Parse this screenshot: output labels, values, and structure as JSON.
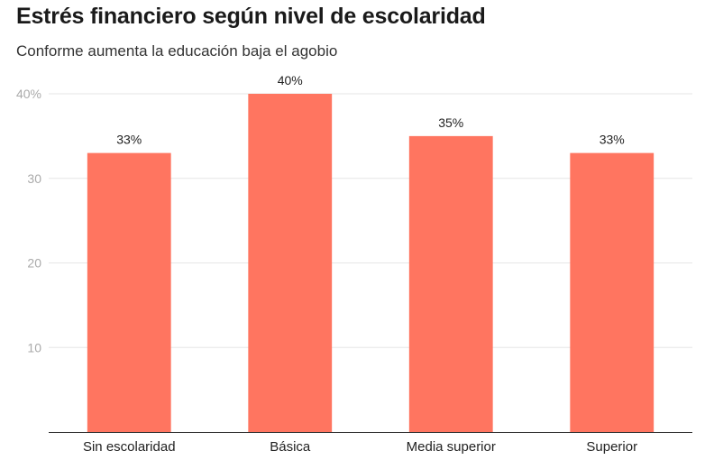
{
  "chart_data": {
    "type": "bar",
    "title": "Estrés financiero según nivel de escolaridad",
    "subtitle": "Conforme aumenta la educación baja el agobio",
    "categories": [
      "Sin escolaridad",
      "Básica",
      "Media superior",
      "Superior"
    ],
    "values": [
      33,
      40,
      35,
      33
    ],
    "data_labels": [
      "33%",
      "40%",
      "35%",
      "33%"
    ],
    "y_ticks": [
      10,
      20,
      30,
      40
    ],
    "y_tick_labels": [
      "10",
      "20",
      "30",
      "40%"
    ],
    "ylim": [
      0,
      40
    ],
    "xlabel": "",
    "ylabel": "",
    "grid": true,
    "bar_color": "#ff7560",
    "grid_color": "#e6e6e6",
    "tick_label_color": "#aaaaaa"
  }
}
